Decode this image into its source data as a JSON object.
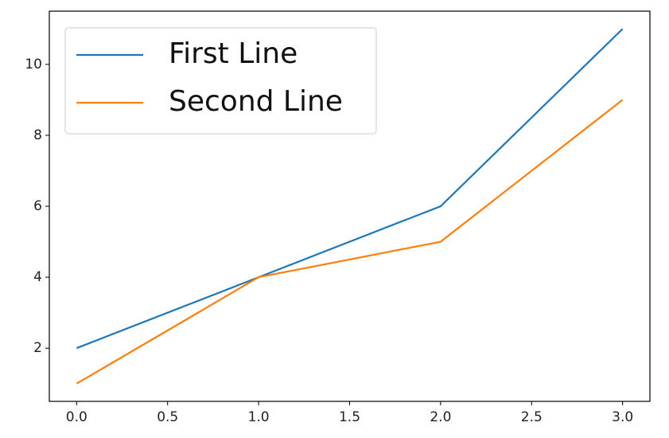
{
  "chart_data": {
    "type": "line",
    "x": [
      0,
      1,
      2,
      3
    ],
    "series": [
      {
        "name": "First Line",
        "color": "#1f77b4",
        "values": [
          2,
          4,
          6,
          11
        ]
      },
      {
        "name": "Second Line",
        "color": "#ff7f0e",
        "values": [
          1,
          4,
          5,
          9
        ]
      }
    ],
    "xlim": [
      -0.15,
      3.15
    ],
    "xticks": [
      {
        "value": 0,
        "label": "0.0"
      },
      0.5,
      {
        "value": 1,
        "label": "1.0"
      },
      1.5,
      {
        "value": 2,
        "label": "2.0"
      },
      2.5,
      {
        "value": 3,
        "label": "3.0"
      }
    ],
    "ylim": [
      0.5,
      11.5
    ],
    "yticks": [
      2,
      4,
      6,
      8,
      10
    ],
    "grid": false,
    "legend": "upper left"
  }
}
